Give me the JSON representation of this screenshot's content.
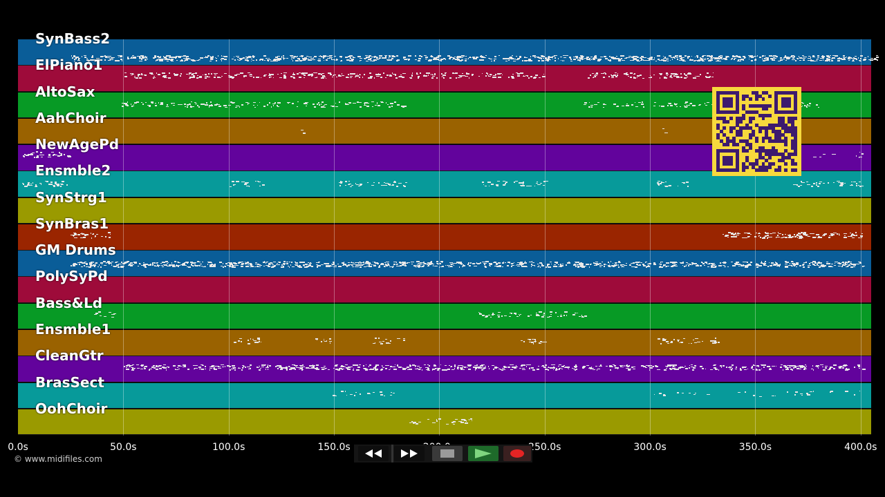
{
  "tracks": [
    {
      "name": "SynBass2",
      "color": "#0a5d98",
      "noteRow": 0.7
    },
    {
      "name": "ElPiano1",
      "color": "#9e0b3a",
      "noteRow": 0.35
    },
    {
      "name": "AltoSax",
      "color": "#079a25",
      "noteRow": 0.45
    },
    {
      "name": "AahChoir",
      "color": "#9a6200",
      "noteRow": 0.45
    },
    {
      "name": "NewAgePd",
      "color": "#62039c",
      "noteRow": 0.35
    },
    {
      "name": "Ensmble2",
      "color": "#079a9a",
      "noteRow": 0.45
    },
    {
      "name": "SynStrg1",
      "color": "#9a9a00",
      "noteRow": 0.45
    },
    {
      "name": "SynBras1",
      "color": "#9a2500",
      "noteRow": 0.4
    },
    {
      "name": "GM Drums",
      "color": "#0a5d98",
      "noteRow": 0.5
    },
    {
      "name": "PolySyPd",
      "color": "#9e0b3a",
      "noteRow": 0.45
    },
    {
      "name": "Bass&Ld",
      "color": "#079a25",
      "noteRow": 0.4
    },
    {
      "name": "Ensmble1",
      "color": "#9a6200",
      "noteRow": 0.4
    },
    {
      "name": "CleanGtr",
      "color": "#62039c",
      "noteRow": 0.4
    },
    {
      "name": "BrasSect",
      "color": "#079a9a",
      "noteRow": 0.4
    },
    {
      "name": "OohChoir",
      "color": "#9a9a00",
      "noteRow": 0.45
    }
  ],
  "timeline": {
    "start_s": 0,
    "end_s": 405,
    "ticks": [
      {
        "t": 0,
        "label": "0.0s"
      },
      {
        "t": 50,
        "label": "50.0s"
      },
      {
        "t": 100,
        "label": "100.0s"
      },
      {
        "t": 150,
        "label": "150.0s"
      },
      {
        "t": 200,
        "label": "200.0s"
      },
      {
        "t": 250,
        "label": "250.0s"
      },
      {
        "t": 300,
        "label": "300.0s"
      },
      {
        "t": 350,
        "label": "350.0s"
      },
      {
        "t": 400,
        "label": "400.0s"
      }
    ]
  },
  "note_segments": [
    {
      "track": 0,
      "start": 25,
      "end": 408,
      "density": 3.2
    },
    {
      "track": 1,
      "start": 50,
      "end": 250,
      "density": 2.0
    },
    {
      "track": 1,
      "start": 270,
      "end": 330,
      "density": 2.0
    },
    {
      "track": 2,
      "start": 49,
      "end": 183,
      "density": 1.5
    },
    {
      "track": 2,
      "start": 268,
      "end": 380,
      "density": 1.2
    },
    {
      "track": 3,
      "start": 134,
      "end": 136,
      "density": 1.0
    },
    {
      "track": 3,
      "start": 306,
      "end": 308,
      "density": 1.0
    },
    {
      "track": 4,
      "start": 2,
      "end": 24,
      "density": 2.0
    },
    {
      "track": 4,
      "start": 375,
      "end": 402,
      "density": 0.5
    },
    {
      "track": 5,
      "start": 2,
      "end": 24,
      "density": 2.0
    },
    {
      "track": 5,
      "start": 100,
      "end": 116,
      "density": 1.5
    },
    {
      "track": 5,
      "start": 152,
      "end": 184,
      "density": 1.5
    },
    {
      "track": 5,
      "start": 219,
      "end": 251,
      "density": 1.5
    },
    {
      "track": 5,
      "start": 303,
      "end": 318,
      "density": 1.5
    },
    {
      "track": 5,
      "start": 368,
      "end": 400,
      "density": 1.5
    },
    {
      "track": 7,
      "start": 25,
      "end": 44,
      "density": 2.0
    },
    {
      "track": 7,
      "start": 334,
      "end": 401,
      "density": 2.5
    },
    {
      "track": 8,
      "start": 25,
      "end": 401,
      "density": 3.5
    },
    {
      "track": 10,
      "start": 34,
      "end": 47,
      "density": 1.0
    },
    {
      "track": 10,
      "start": 218,
      "end": 270,
      "density": 1.5
    },
    {
      "track": 11,
      "start": 102,
      "end": 116,
      "density": 1.5
    },
    {
      "track": 11,
      "start": 141,
      "end": 150,
      "density": 1.5
    },
    {
      "track": 11,
      "start": 168,
      "end": 183,
      "density": 1.5
    },
    {
      "track": 11,
      "start": 236,
      "end": 251,
      "density": 1.5
    },
    {
      "track": 11,
      "start": 303,
      "end": 333,
      "density": 1.5
    },
    {
      "track": 12,
      "start": 50,
      "end": 401,
      "density": 2.5
    },
    {
      "track": 13,
      "start": 143,
      "end": 183,
      "density": 0.6
    },
    {
      "track": 13,
      "start": 301,
      "end": 401,
      "density": 0.4
    },
    {
      "track": 14,
      "start": 184,
      "end": 216,
      "density": 1.2
    }
  ],
  "qr": {
    "fg": "#3d1a6e",
    "bg": "#f7d93d",
    "size": 25
  },
  "transport": {
    "rewind_icon": "rewind-icon",
    "fast_forward_icon": "fast-forward-icon",
    "stop_icon": "stop-icon",
    "play_icon": "play-icon",
    "record_icon": "record-icon"
  },
  "credit": "© www.midifiles.com"
}
